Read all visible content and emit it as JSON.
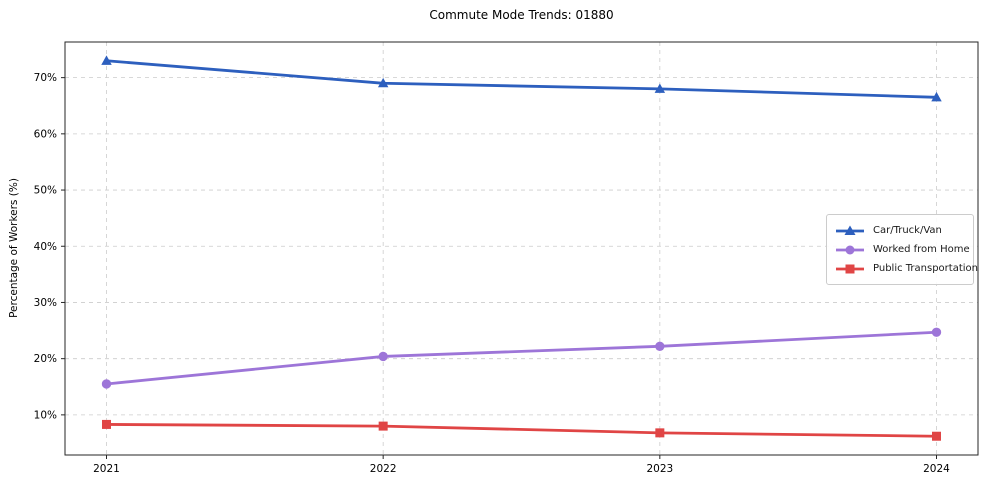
{
  "figure": {
    "title": "Commute Mode Trends: 01880"
  },
  "chart_data": {
    "type": "line",
    "title": "Commute Mode Trends: 01880",
    "xlabel": "",
    "ylabel": "Percentage of Workers (%)",
    "x": [
      2021,
      2022,
      2023,
      2024
    ],
    "x_tick_labels": [
      "2021",
      "2022",
      "2023",
      "2024"
    ],
    "y_ticks": [
      10,
      20,
      30,
      40,
      50,
      60,
      70
    ],
    "y_tick_suffix": "%",
    "xlim": [
      2020.85,
      2024.15
    ],
    "ylim": [
      2.86,
      76.34
    ],
    "grid": true,
    "grid_color": "#cccccc",
    "spine_color": "#262626",
    "legend_position": "center right",
    "series": [
      {
        "name": "Car/Truck/Van",
        "color": "#2d5fbe",
        "marker": "triangle",
        "values": [
          73.0,
          69.0,
          68.0,
          66.5
        ]
      },
      {
        "name": "Worked from Home",
        "color": "#9d75d8",
        "marker": "circle",
        "values": [
          15.5,
          20.4,
          22.2,
          24.7
        ]
      },
      {
        "name": "Public Transportation",
        "color": "#e04545",
        "marker": "square",
        "values": [
          8.3,
          8.0,
          6.8,
          6.2
        ]
      }
    ]
  }
}
